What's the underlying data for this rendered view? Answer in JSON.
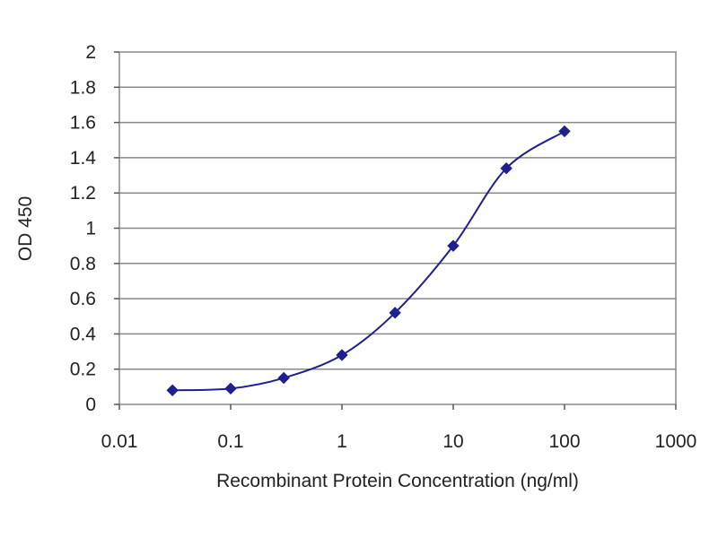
{
  "chart_data": {
    "type": "line",
    "title": "",
    "xlabel": "Recombinant Protein Concentration (ng/ml)",
    "ylabel": "OD 450",
    "x_scale": "log",
    "xlim": [
      0.01,
      1000
    ],
    "ylim": [
      0,
      2
    ],
    "x_ticks": [
      "0.01",
      "0.1",
      "1",
      "10",
      "100",
      "1000"
    ],
    "y_ticks": [
      "0",
      "0.2",
      "0.4",
      "0.6",
      "0.8",
      "1",
      "1.2",
      "1.4",
      "1.6",
      "1.8",
      "2"
    ],
    "grid": "horizontal",
    "legend": "none",
    "series": [
      {
        "color": "#1f1f8f",
        "marker": "diamond",
        "x": [
          0.03,
          0.1,
          0.3,
          1,
          3,
          10,
          30,
          100
        ],
        "y": [
          0.08,
          0.09,
          0.15,
          0.28,
          0.52,
          0.9,
          1.34,
          1.55
        ]
      }
    ],
    "colors": {
      "plot_border": "#888888",
      "grid": "#888888",
      "axis": "#555555",
      "series": "#1f1f8f"
    }
  }
}
